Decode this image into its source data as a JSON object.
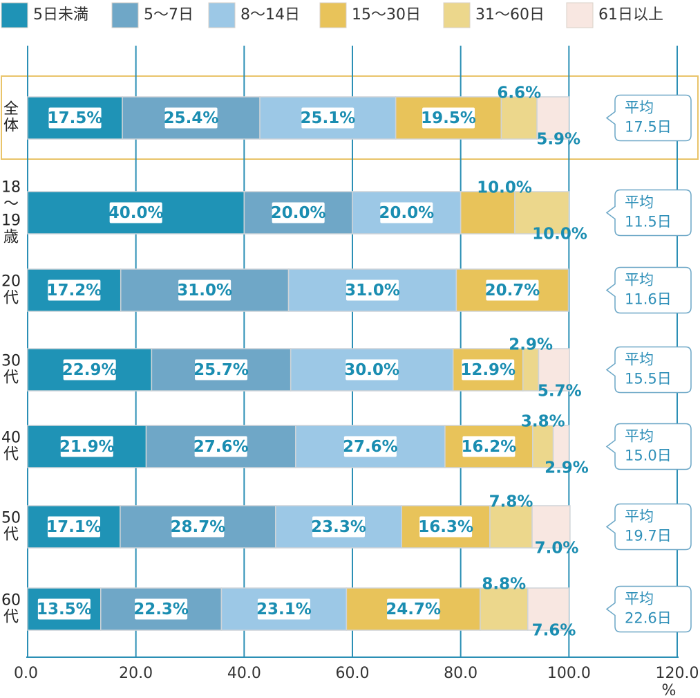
{
  "chart_data": {
    "type": "bar",
    "orientation": "horizontal",
    "stacked": true,
    "unit": "%",
    "xlim": [
      0,
      120
    ],
    "ticks": [
      "0.0",
      "20.0",
      "40.0",
      "60.0",
      "80.0",
      "100.0",
      "120.0"
    ],
    "legend_position": "top",
    "grid": true,
    "categories": [
      "全\n体",
      "18\n～\n19\n歳",
      "20\n代",
      "30\n代",
      "40\n代",
      "50\n代",
      "60\n代"
    ],
    "series": [
      {
        "name": "5日未満",
        "color": "#1f93b6",
        "values": [
          17.5,
          40.0,
          17.2,
          22.9,
          21.9,
          17.1,
          13.5
        ],
        "labels": [
          "17.5%",
          "40.0%",
          "17.2%",
          "22.9%",
          "21.9%",
          "17.1%",
          "13.5%"
        ]
      },
      {
        "name": "5～7日",
        "color": "#6fa7c7",
        "values": [
          25.4,
          20.0,
          31.0,
          25.7,
          27.6,
          28.7,
          22.3
        ],
        "labels": [
          "25.4%",
          "20.0%",
          "31.0%",
          "25.7%",
          "27.6%",
          "28.7%",
          "22.3%"
        ]
      },
      {
        "name": "8～14日",
        "color": "#9cc8e6",
        "values": [
          25.1,
          20.0,
          31.0,
          30.0,
          27.6,
          23.3,
          23.1
        ],
        "labels": [
          "25.1%",
          "20.0%",
          "31.0%",
          "30.0%",
          "27.6%",
          "23.3%",
          "23.1%"
        ]
      },
      {
        "name": "15～30日",
        "color": "#e8c35a",
        "values": [
          19.5,
          10.0,
          20.7,
          12.9,
          16.2,
          16.3,
          24.7
        ],
        "labels": [
          "19.5%",
          "10.0%",
          "20.7%",
          "12.9%",
          "16.2%",
          "16.3%",
          "24.7%"
        ]
      },
      {
        "name": "31～60日",
        "color": "#ecd78c",
        "values": [
          6.6,
          10.0,
          0,
          2.9,
          3.8,
          7.8,
          8.8
        ],
        "labels": [
          "6.6%",
          "10.0%",
          "",
          "2.9%",
          "3.8%",
          "7.8%",
          "8.8%"
        ]
      },
      {
        "name": "61日以上",
        "color": "#f8e7e1",
        "values": [
          5.9,
          0,
          0,
          5.7,
          2.9,
          7.0,
          7.6
        ],
        "labels": [
          "5.9%",
          "",
          "",
          "5.7%",
          "2.9%",
          "7.0%",
          "7.6%"
        ]
      }
    ],
    "averages": [
      {
        "line1": "平均",
        "line2": "17.5日"
      },
      {
        "line1": "平均",
        "line2": "11.5日"
      },
      {
        "line1": "平均",
        "line2": "11.6日"
      },
      {
        "line1": "平均",
        "line2": "15.5日"
      },
      {
        "line1": "平均",
        "line2": "15.0日"
      },
      {
        "line1": "平均",
        "line2": "19.7日"
      },
      {
        "line1": "平均",
        "line2": "22.6日"
      }
    ],
    "highlight_category": 0,
    "colors": {
      "grid": "#2b8fb5",
      "bar_edge": "#cfd4d8",
      "highlight_border": "#e9c46a",
      "callout_border": "#6aa6c6",
      "label_bg": "#ffffff"
    }
  }
}
